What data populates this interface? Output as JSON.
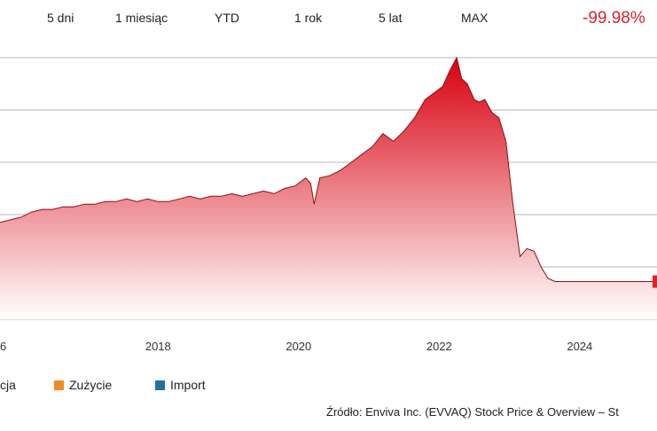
{
  "tabs": [
    "5 dni",
    "1 miesiąc",
    "YTD",
    "1 rok",
    "5 lat",
    "MAX"
  ],
  "change": "-99.98%",
  "legend": [
    {
      "label": "cja",
      "color": null
    },
    {
      "label": "Zużycie",
      "color": "#f08c28"
    },
    {
      "label": "Import",
      "color": "#1f6fa8"
    }
  ],
  "source": "Źródło: Enviva Inc. (EVVAQ) Stock Price & Overview – St",
  "colors": {
    "accent": "#d9232d",
    "fill_top": "#d8000f",
    "fill_bottom": "#ffffff"
  },
  "chart_data": {
    "type": "area",
    "xlabel": "",
    "ylabel": "",
    "x_ticks": [
      "6",
      "2018",
      "2020",
      "2022",
      "2024"
    ],
    "xlim": [
      2015.75,
      2025.1
    ],
    "ylim": [
      0,
      5
    ],
    "grid": true,
    "series": [
      {
        "x": [
          2015.75,
          2015.9,
          2016.05,
          2016.2,
          2016.35,
          2016.5,
          2016.65,
          2016.8,
          2016.95,
          2017.1,
          2017.25,
          2017.4,
          2017.55,
          2017.7,
          2017.85,
          2018.0,
          2018.15,
          2018.3,
          2018.45,
          2018.6,
          2018.75,
          2018.9,
          2019.05,
          2019.2,
          2019.35,
          2019.5,
          2019.65,
          2019.8,
          2019.95,
          2020.1,
          2020.17,
          2020.22,
          2020.3,
          2020.45,
          2020.6,
          2020.75,
          2020.9,
          2021.05,
          2021.2,
          2021.35,
          2021.5,
          2021.65,
          2021.8,
          2021.95,
          2022.05,
          2022.15,
          2022.25,
          2022.32,
          2022.4,
          2022.5,
          2022.57,
          2022.65,
          2022.75,
          2022.85,
          2022.95,
          2023.05,
          2023.15,
          2023.25,
          2023.35,
          2023.45,
          2023.55,
          2023.65,
          2023.75,
          2023.85,
          2024.0,
          2024.2,
          2024.5,
          2024.8,
          2025.1
        ],
        "values": [
          1.85,
          1.9,
          1.95,
          2.05,
          2.1,
          2.1,
          2.15,
          2.15,
          2.2,
          2.2,
          2.25,
          2.25,
          2.3,
          2.25,
          2.3,
          2.25,
          2.25,
          2.3,
          2.35,
          2.3,
          2.35,
          2.35,
          2.4,
          2.35,
          2.4,
          2.45,
          2.4,
          2.5,
          2.55,
          2.7,
          2.6,
          2.2,
          2.7,
          2.75,
          2.85,
          3.0,
          3.15,
          3.3,
          3.55,
          3.4,
          3.6,
          3.85,
          4.2,
          4.35,
          4.45,
          4.75,
          5.0,
          4.6,
          4.5,
          4.2,
          4.15,
          4.2,
          3.95,
          3.85,
          3.4,
          2.2,
          1.2,
          1.35,
          1.3,
          1.0,
          0.78,
          0.72,
          0.72,
          0.72,
          0.72,
          0.72,
          0.72,
          0.72,
          0.72
        ]
      }
    ]
  }
}
